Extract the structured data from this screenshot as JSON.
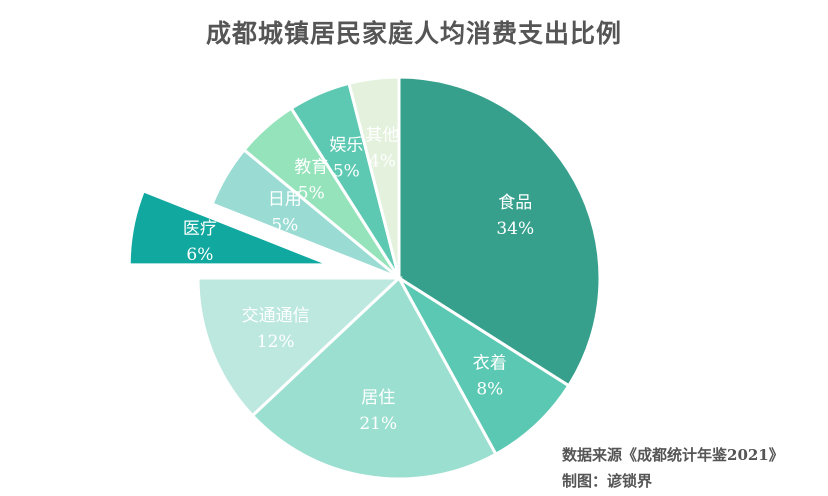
{
  "chart_data": {
    "type": "pie",
    "title": "成都城镇居民家庭人均消费支出比例",
    "slices": [
      {
        "name": "食品",
        "value": 34,
        "label": "34%",
        "color": "#37a08d"
      },
      {
        "name": "衣着",
        "value": 8,
        "label": "8%",
        "color": "#5ac8b2"
      },
      {
        "name": "居住",
        "value": 21,
        "label": "21%",
        "color": "#9adfcf"
      },
      {
        "name": "交通通信",
        "value": 12,
        "label": "12%",
        "color": "#bde8df"
      },
      {
        "name": "医疗",
        "value": 6,
        "label": "6%",
        "color": "#10a89f",
        "exploded": true
      },
      {
        "name": "日用",
        "value": 5,
        "label": "5%",
        "color": "#9adcd3"
      },
      {
        "name": "教育",
        "value": 5,
        "label": "5%",
        "color": "#95e3bb"
      },
      {
        "name": "娱乐",
        "value": 5,
        "label": "5%",
        "color": "#5dc9b2"
      },
      {
        "name": "其他",
        "value": 4,
        "label": "4%",
        "color": "#e3f1dd"
      }
    ]
  },
  "footer": {
    "source": "数据来源《成都统计年鉴2021》",
    "author": "制图：谚锁界"
  }
}
